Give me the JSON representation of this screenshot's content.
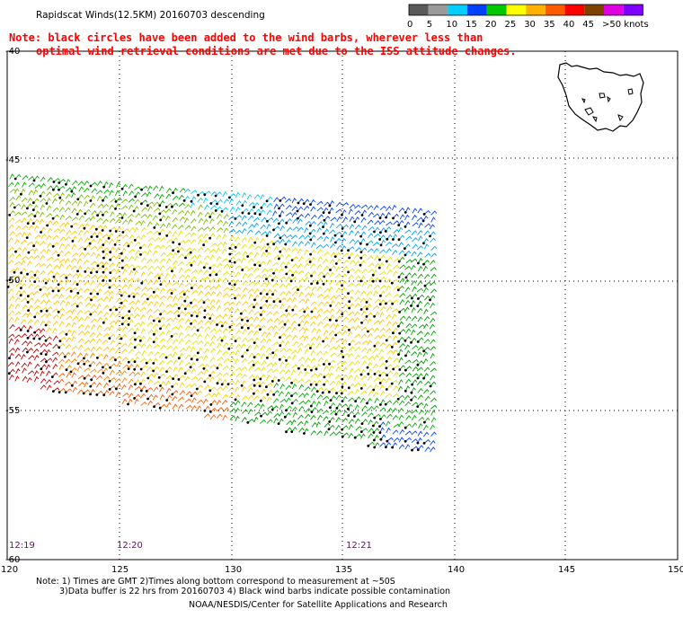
{
  "title": "Rapidscat Winds(12.5KM) 20160703 descending",
  "note": {
    "line1": "Note: black circles have been added to the wind barbs, wherever less than",
    "line2": "optimal wind retrieval conditions are met due to the ISS attitude changes."
  },
  "legend": {
    "colors": [
      "#5a5a5a",
      "#9a9a9a",
      "#00cfff",
      "#0040ff",
      "#00c800",
      "#ffff00",
      "#ffb000",
      "#ff5a00",
      "#ff0000",
      "#804000",
      "#e000e0",
      "#8000ff"
    ],
    "labels": [
      "0",
      "5",
      "10",
      "15",
      "20",
      "25",
      "30",
      "35",
      "40",
      "45",
      ">50 knots"
    ]
  },
  "axes": {
    "x_ticks": [
      "120",
      "125",
      "130",
      "135",
      "140",
      "145",
      "150"
    ],
    "y_ticks": [
      "-40",
      "-45",
      "-50",
      "-55",
      "-60"
    ]
  },
  "times": [
    "12:19",
    "12:20",
    "12:21"
  ],
  "footer": {
    "line1": "Note: 1) Times are GMT  2)Times along bottom correspond to measurement at ~50S",
    "line2": "3)Data buffer is 22 hrs from 20160703  4) Black wind barbs indicate possible contamination",
    "line3": "NOAA/NESDIS/Center for Satellite Applications and Research"
  }
}
